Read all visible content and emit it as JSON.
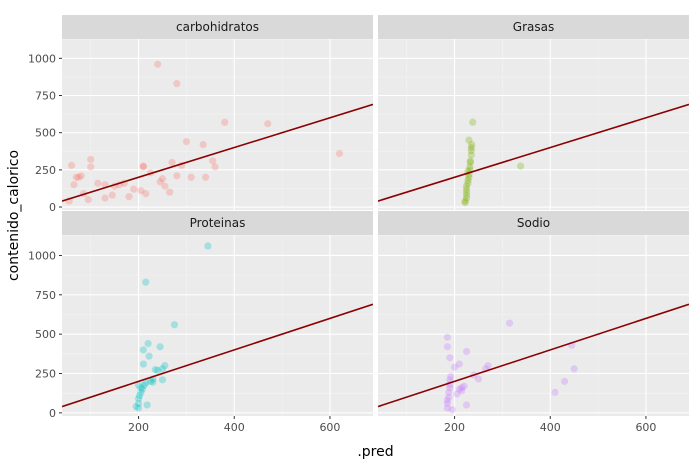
{
  "chart_data": {
    "type": "scatter",
    "facet_layout": "2x2 grid, shared axes",
    "xlabel": ".pred",
    "ylabel": "contenido_calorico",
    "xlim": [
      40,
      690
    ],
    "ylim": [
      -20,
      1130
    ],
    "x_ticks": [
      200,
      400,
      600
    ],
    "y_ticks": [
      0,
      250,
      500,
      750,
      1000
    ],
    "reference_line": {
      "color": "#8B0000",
      "slope": 1,
      "intercept": 0
    },
    "point_alpha": 0.3,
    "facets": [
      {
        "name": "carbohidratos",
        "color": "#F8766D",
        "points": [
          [
            60,
            280
          ],
          [
            65,
            150
          ],
          [
            70,
            200
          ],
          [
            75,
            200
          ],
          [
            80,
            210
          ],
          [
            85,
            90
          ],
          [
            100,
            270
          ],
          [
            100,
            320
          ],
          [
            115,
            160
          ],
          [
            130,
            150
          ],
          [
            145,
            80
          ],
          [
            150,
            140
          ],
          [
            160,
            150
          ],
          [
            170,
            160
          ],
          [
            190,
            120
          ],
          [
            205,
            110
          ],
          [
            210,
            275
          ],
          [
            210,
            270
          ],
          [
            215,
            90
          ],
          [
            225,
            230
          ],
          [
            240,
            960
          ],
          [
            245,
            170
          ],
          [
            250,
            190
          ],
          [
            255,
            140
          ],
          [
            265,
            100
          ],
          [
            270,
            300
          ],
          [
            280,
            830
          ],
          [
            280,
            210
          ],
          [
            290,
            280
          ],
          [
            300,
            440
          ],
          [
            310,
            200
          ],
          [
            335,
            420
          ],
          [
            340,
            200
          ],
          [
            355,
            310
          ],
          [
            360,
            270
          ],
          [
            380,
            570
          ],
          [
            470,
            560
          ],
          [
            620,
            360
          ],
          [
            55,
            40
          ],
          [
            95,
            50
          ],
          [
            130,
            60
          ],
          [
            180,
            70
          ]
        ]
      },
      {
        "name": "Grasas",
        "color": "#7CAE00",
        "points": [
          [
            225,
            60
          ],
          [
            225,
            80
          ],
          [
            225,
            100
          ],
          [
            225,
            120
          ],
          [
            225,
            140
          ],
          [
            228,
            160
          ],
          [
            228,
            180
          ],
          [
            230,
            200
          ],
          [
            230,
            220
          ],
          [
            232,
            250
          ],
          [
            232,
            270
          ],
          [
            233,
            300
          ],
          [
            233,
            310
          ],
          [
            235,
            350
          ],
          [
            235,
            380
          ],
          [
            235,
            400
          ],
          [
            236,
            420
          ],
          [
            238,
            570
          ],
          [
            338,
            275
          ],
          [
            222,
            40
          ],
          [
            222,
            30
          ],
          [
            230,
            450
          ],
          [
            228,
            240
          ]
        ]
      },
      {
        "name": "Proteinas",
        "color": "#00BFC4",
        "points": [
          [
            200,
            30
          ],
          [
            200,
            60
          ],
          [
            200,
            90
          ],
          [
            202,
            110
          ],
          [
            205,
            130
          ],
          [
            205,
            160
          ],
          [
            208,
            150
          ],
          [
            210,
            400
          ],
          [
            210,
            310
          ],
          [
            212,
            175
          ],
          [
            215,
            190
          ],
          [
            215,
            830
          ],
          [
            218,
            50
          ],
          [
            220,
            440
          ],
          [
            222,
            360
          ],
          [
            225,
            200
          ],
          [
            230,
            215
          ],
          [
            235,
            275
          ],
          [
            240,
            270
          ],
          [
            245,
            420
          ],
          [
            250,
            280
          ],
          [
            250,
            210
          ],
          [
            255,
            300
          ],
          [
            275,
            560
          ],
          [
            345,
            1060
          ],
          [
            195,
            40
          ],
          [
            200,
            175
          ],
          [
            230,
            195
          ]
        ]
      },
      {
        "name": "Sodio",
        "color": "#C77CFF",
        "points": [
          [
            185,
            30
          ],
          [
            185,
            60
          ],
          [
            185,
            80
          ],
          [
            188,
            100
          ],
          [
            188,
            130
          ],
          [
            190,
            160
          ],
          [
            190,
            180
          ],
          [
            190,
            210
          ],
          [
            192,
            230
          ],
          [
            185,
            420
          ],
          [
            185,
            480
          ],
          [
            190,
            350
          ],
          [
            200,
            290
          ],
          [
            205,
            120
          ],
          [
            210,
            150
          ],
          [
            210,
            310
          ],
          [
            215,
            160
          ],
          [
            220,
            170
          ],
          [
            225,
            390
          ],
          [
            225,
            50
          ],
          [
            240,
            240
          ],
          [
            250,
            215
          ],
          [
            265,
            280
          ],
          [
            270,
            300
          ],
          [
            315,
            570
          ],
          [
            410,
            130
          ],
          [
            430,
            200
          ],
          [
            445,
            430
          ],
          [
            450,
            280
          ],
          [
            195,
            20
          ],
          [
            215,
            140
          ]
        ]
      }
    ]
  }
}
